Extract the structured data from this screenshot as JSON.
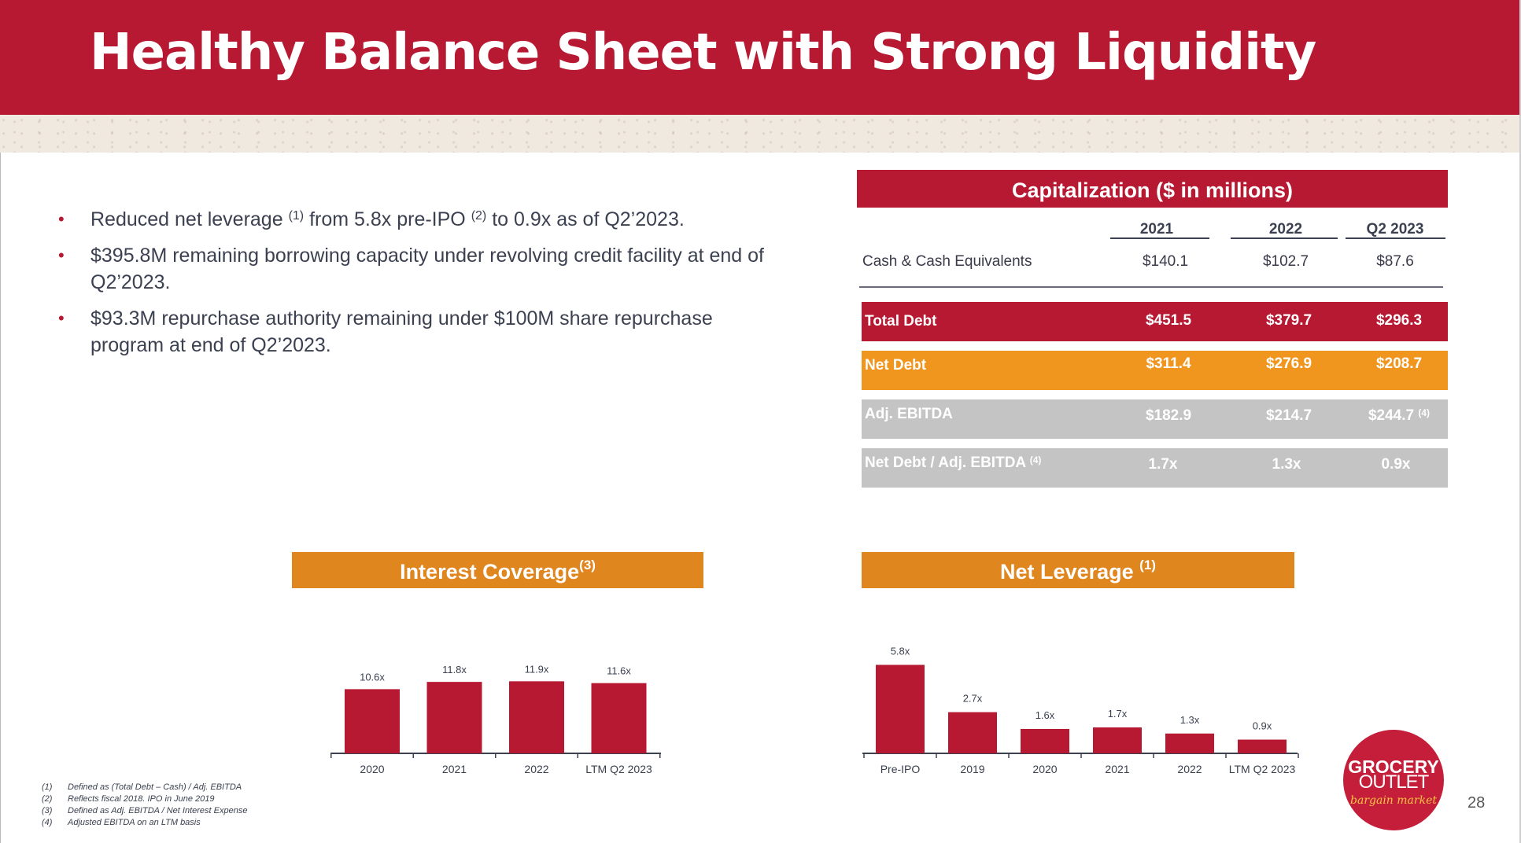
{
  "title": "Healthy Balance Sheet with Strong Liquidity",
  "bullets": [
    {
      "pre": "Reduced net leverage ",
      "sup1": "(1)",
      "mid": " from 5.8x pre-IPO ",
      "sup2": "(2)",
      "post": " to 0.9x as of Q2’2023."
    },
    {
      "text": "$395.8M remaining borrowing capacity under revolving credit facility at end of Q2’2023."
    },
    {
      "text": "$93.3M repurchase authority remaining under $100M share repurchase program at end of Q2’2023."
    }
  ],
  "capitalization": {
    "header": "Capitalization ($ in millions)",
    "years": [
      "2021",
      "2022",
      "Q2 2023"
    ],
    "cash_label": "Cash & Cash Equivalents",
    "cash_values": [
      "$140.1",
      "$102.7",
      "$87.6"
    ],
    "total_debt": {
      "label": "Total Debt",
      "values": [
        "$451.5",
        "$379.7",
        "$296.3"
      ],
      "color": "#b71832"
    },
    "net_debt": {
      "label": "Net Debt",
      "values": [
        "$311.4",
        "$276.9",
        "$208.7"
      ],
      "color": "#f0961e"
    },
    "adj_ebitda": {
      "label": "Adj. EBITDA",
      "values": [
        "$182.9",
        "$214.7",
        "$244.7"
      ],
      "last_sup": "(4)",
      "color": "#c4c4c4"
    },
    "ratio": {
      "label": "Net Debt /  Adj. EBITDA",
      "label_sup": "(4)",
      "values": [
        "1.7x",
        "1.3x",
        "0.9x"
      ],
      "color": "#c4c4c4"
    }
  },
  "chart_data": [
    {
      "type": "bar",
      "title": "Interest Coverage",
      "title_sup": "(3)",
      "categories": [
        "2020",
        "2021",
        "2022",
        "LTM Q2 2023"
      ],
      "values": [
        10.6,
        11.8,
        11.9,
        11.6
      ],
      "labels": [
        "10.6x",
        "11.8x",
        "11.9x",
        "11.6x"
      ],
      "color": "#b71832",
      "header_color": "#e0861f"
    },
    {
      "type": "bar",
      "title": "Net Leverage",
      "title_sup": "(1)",
      "categories": [
        "Pre-IPO",
        "2019",
        "2020",
        "2021",
        "2022",
        "LTM Q2 2023"
      ],
      "values": [
        5.8,
        2.7,
        1.6,
        1.7,
        1.3,
        0.9
      ],
      "labels": [
        "5.8x",
        "2.7x",
        "1.6x",
        "1.7x",
        "1.3x",
        "0.9x"
      ],
      "color": "#b71832",
      "header_color": "#e0861f"
    }
  ],
  "footnotes": [
    {
      "n": "(1)",
      "text": "Defined as (Total Debt – Cash) / Adj. EBITDA"
    },
    {
      "n": "(2)",
      "text": "Reflects fiscal 2018. IPO in June 2019"
    },
    {
      "n": "(3)",
      "text": "Defined as Adj. EBITDA / Net Interest Expense"
    },
    {
      "n": "(4)",
      "text": "Adjusted EBITDA on an LTM basis"
    }
  ],
  "logo": {
    "line1": "GROCERY",
    "line2": "OUTLET",
    "line3": "bargain market"
  },
  "page_number": "28"
}
